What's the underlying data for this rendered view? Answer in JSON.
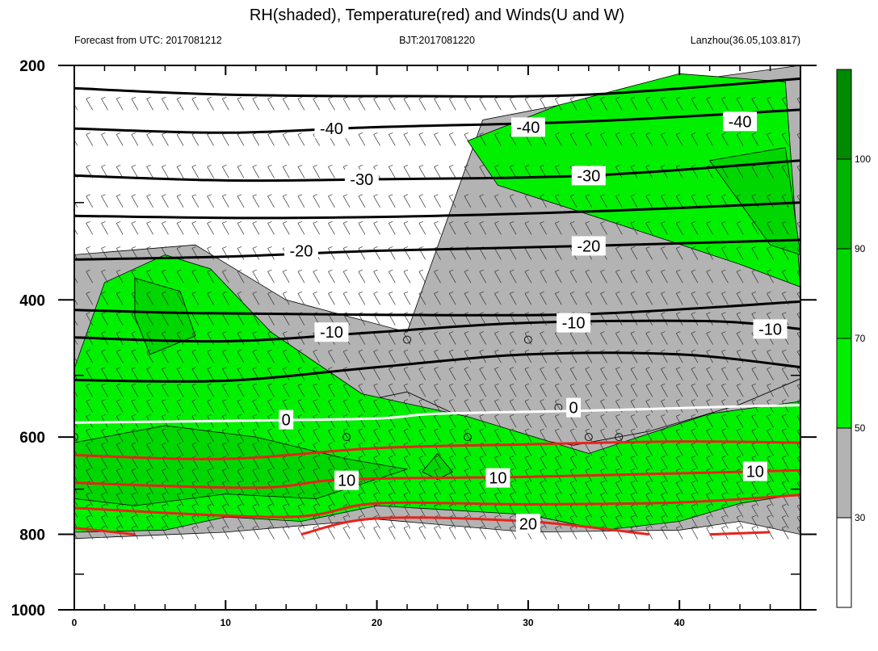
{
  "chart_data": {
    "type": "heatmap",
    "title": "RH(shaded), Temperature(red) and Winds(U and W)",
    "subtitle_left": "Forecast from UTC: 2017081212",
    "subtitle_center": "BJT:2017081220",
    "subtitle_right": "Lanzhou(36.05,103.817)",
    "xlim": [
      0,
      48
    ],
    "ylim": [
      1000,
      200
    ],
    "y_scale": "log-pressure (inverted)",
    "x_ticks": [
      "0",
      "10",
      "20",
      "30",
      "40"
    ],
    "x_tick_values": [
      0,
      10,
      20,
      30,
      40
    ],
    "y_ticks": [
      "200",
      "400",
      "600",
      "800",
      "1000"
    ],
    "y_tick_values": [
      200,
      400,
      600,
      800,
      1000
    ],
    "colorbar": {
      "levels": [
        "30",
        "50",
        "70",
        "90",
        "100"
      ],
      "level_values": [
        30,
        50,
        70,
        90,
        100
      ],
      "colors": [
        "#ffffff",
        "#b3b3b3",
        "#00f000",
        "#00d700",
        "#00b400",
        "#008a00"
      ]
    },
    "temperature_contours": {
      "cold_color": "#000000",
      "zero_color": "#ffffff",
      "warm_color": "#e8231a",
      "lines": [
        {
          "level": -40,
          "points": [
            [
              0,
              214
            ],
            [
              10,
              218
            ],
            [
              22,
              219
            ],
            [
              34,
              218
            ],
            [
              48,
              208
            ]
          ]
        },
        {
          "level": -40,
          "points": [
            [
              0,
              241
            ],
            [
              10,
              244
            ],
            [
              20,
              240
            ],
            [
              34,
              236
            ],
            [
              48,
              228
            ]
          ]
        },
        {
          "level": -30,
          "points": [
            [
              0,
              277
            ],
            [
              10,
              281
            ],
            [
              20,
              280
            ],
            [
              34,
              277
            ],
            [
              48,
              265
            ]
          ]
        },
        {
          "level": -30,
          "points": [
            [
              0,
              312
            ],
            [
              12,
              314
            ],
            [
              24,
              312
            ],
            [
              36,
              307
            ],
            [
              48,
              300
            ]
          ]
        },
        {
          "level": -20,
          "points": [
            [
              0,
              355
            ],
            [
              10,
              352
            ],
            [
              20,
              346
            ],
            [
              34,
              341
            ],
            [
              48,
              335
            ]
          ]
        },
        {
          "level": -10,
          "points": [
            [
              0,
              412
            ],
            [
              8,
              416
            ],
            [
              20,
              418
            ],
            [
              34,
              417
            ],
            [
              48,
              402
            ]
          ]
        },
        {
          "level": -10,
          "points": [
            [
              0,
              447
            ],
            [
              10,
              452
            ],
            [
              20,
              440
            ],
            [
              30,
              428
            ],
            [
              42,
              426
            ],
            [
              48,
              436
            ]
          ]
        },
        {
          "level": -10,
          "points": [
            [
              0,
              507
            ],
            [
              10,
              508
            ],
            [
              20,
              488
            ],
            [
              30,
              470
            ],
            [
              40,
              470
            ],
            [
              48,
              488
            ]
          ]
        },
        {
          "level": 0,
          "points": [
            [
              0,
              575
            ],
            [
              10,
              572
            ],
            [
              20,
              568
            ],
            [
              24,
              560
            ],
            [
              34,
              555
            ],
            [
              44,
              548
            ],
            [
              48,
              546
            ]
          ]
        },
        {
          "level": 10,
          "points": [
            [
              0,
              633
            ],
            [
              10,
              640
            ],
            [
              20,
              620
            ],
            [
              30,
              613
            ],
            [
              40,
              608
            ],
            [
              48,
              610
            ]
          ]
        },
        {
          "level": 10,
          "points": [
            [
              0,
              687
            ],
            [
              12,
              697
            ],
            [
              18,
              680
            ],
            [
              30,
              675
            ],
            [
              40,
              668
            ],
            [
              48,
              662
            ]
          ]
        },
        {
          "level": 10,
          "points": [
            [
              0,
              740
            ],
            [
              14,
              760
            ],
            [
              20,
              730
            ],
            [
              30,
              732
            ],
            [
              40,
              728
            ],
            [
              48,
              712
            ]
          ]
        },
        {
          "level": 20,
          "points": [
            [
              15,
              800
            ],
            [
              20,
              763
            ],
            [
              30,
              770
            ],
            [
              38,
              800
            ]
          ]
        },
        {
          "level": 20,
          "points": [
            [
              0,
              785
            ],
            [
              4,
              800
            ]
          ]
        },
        {
          "level": 20,
          "points": [
            [
              42,
              800
            ],
            [
              46,
              795
            ]
          ]
        }
      ],
      "labels": [
        {
          "text": "-40",
          "x": 17,
          "y": 241
        },
        {
          "text": "-40",
          "x": 30,
          "y": 240
        },
        {
          "text": "-40",
          "x": 44,
          "y": 236
        },
        {
          "text": "-30",
          "x": 19,
          "y": 280
        },
        {
          "text": "-30",
          "x": 34,
          "y": 277
        },
        {
          "text": "-20",
          "x": 15,
          "y": 346
        },
        {
          "text": "-20",
          "x": 34,
          "y": 341
        },
        {
          "text": "-10",
          "x": 17,
          "y": 440
        },
        {
          "text": "-10",
          "x": 33,
          "y": 428
        },
        {
          "text": "-10",
          "x": 46,
          "y": 436
        },
        {
          "text": "0",
          "x": 14,
          "y": 570
        },
        {
          "text": "0",
          "x": 33,
          "y": 550
        },
        {
          "text": "10",
          "x": 18,
          "y": 682
        },
        {
          "text": "10",
          "x": 28,
          "y": 677
        },
        {
          "text": "10",
          "x": 45,
          "y": 664
        },
        {
          "text": "20",
          "x": 30,
          "y": 775
        }
      ]
    },
    "rh_regions": [
      {
        "level": 30,
        "points": [
          [
            0,
            350
          ],
          [
            8,
            340
          ],
          [
            14,
            400
          ],
          [
            22,
            440
          ],
          [
            27,
            235
          ],
          [
            40,
            210
          ],
          [
            48,
            200
          ],
          [
            48,
            505
          ],
          [
            44,
            545
          ],
          [
            38,
            590
          ],
          [
            33,
            615
          ],
          [
            28,
            595
          ],
          [
            22,
            525
          ],
          [
            17,
            550
          ],
          [
            11,
            505
          ],
          [
            6,
            430
          ],
          [
            0,
            520
          ]
        ]
      },
      {
        "level": 30,
        "points": [
          [
            0,
            520
          ],
          [
            6,
            430
          ],
          [
            11,
            505
          ],
          [
            17,
            550
          ],
          [
            22,
            525
          ],
          [
            28,
            595
          ],
          [
            33,
            615
          ],
          [
            38,
            590
          ],
          [
            44,
            545
          ],
          [
            48,
            505
          ],
          [
            48,
            800
          ],
          [
            44,
            770
          ],
          [
            40,
            790
          ],
          [
            30,
            795
          ],
          [
            20,
            765
          ],
          [
            10,
            795
          ],
          [
            0,
            810
          ]
        ]
      },
      {
        "level": 50,
        "points": [
          [
            0,
            490
          ],
          [
            2,
            380
          ],
          [
            6,
            350
          ],
          [
            9,
            365
          ],
          [
            13,
            440
          ],
          [
            19,
            528
          ],
          [
            26,
            565
          ],
          [
            34,
            630
          ],
          [
            42,
            560
          ],
          [
            48,
            540
          ],
          [
            48,
            710
          ],
          [
            44,
            730
          ],
          [
            40,
            770
          ],
          [
            35,
            790
          ],
          [
            30,
            755
          ],
          [
            20,
            735
          ],
          [
            15,
            770
          ],
          [
            10,
            760
          ],
          [
            6,
            790
          ],
          [
            0,
            795
          ]
        ]
      },
      {
        "level": 50,
        "points": [
          [
            26,
            250
          ],
          [
            32,
            225
          ],
          [
            40,
            205
          ],
          [
            47,
            210
          ],
          [
            48,
            385
          ],
          [
            44,
            360
          ],
          [
            36,
            320
          ],
          [
            28,
            285
          ]
        ]
      },
      {
        "level": 70,
        "points": [
          [
            0,
            610
          ],
          [
            6,
            580
          ],
          [
            12,
            600
          ],
          [
            18,
            640
          ],
          [
            22,
            660
          ],
          [
            16,
            720
          ],
          [
            10,
            710
          ],
          [
            4,
            735
          ],
          [
            0,
            720
          ]
        ]
      },
      {
        "level": 70,
        "points": [
          [
            4,
            375
          ],
          [
            7,
            390
          ],
          [
            8,
            445
          ],
          [
            5,
            470
          ],
          [
            4,
            420
          ]
        ]
      },
      {
        "level": 70,
        "points": [
          [
            42,
            265
          ],
          [
            47,
            255
          ],
          [
            48,
            350
          ],
          [
            46,
            340
          ],
          [
            44,
            300
          ]
        ]
      },
      {
        "level": 70,
        "points": [
          [
            24,
            630
          ],
          [
            25,
            665
          ],
          [
            24,
            680
          ],
          [
            23,
            665
          ]
        ]
      }
    ],
    "wind_barb_levels": [
      225,
      250,
      275,
      300,
      325,
      350,
      375,
      400,
      425,
      450,
      475,
      500,
      525,
      550,
      575,
      600,
      625,
      650,
      675,
      700,
      725,
      750,
      775,
      800
    ],
    "calm_points": [
      [
        22,
        450
      ],
      [
        30,
        450
      ],
      [
        32,
        550
      ],
      [
        18,
        600
      ],
      [
        26,
        600
      ],
      [
        34,
        600
      ],
      [
        36,
        600
      ],
      [
        0,
        600
      ]
    ]
  }
}
